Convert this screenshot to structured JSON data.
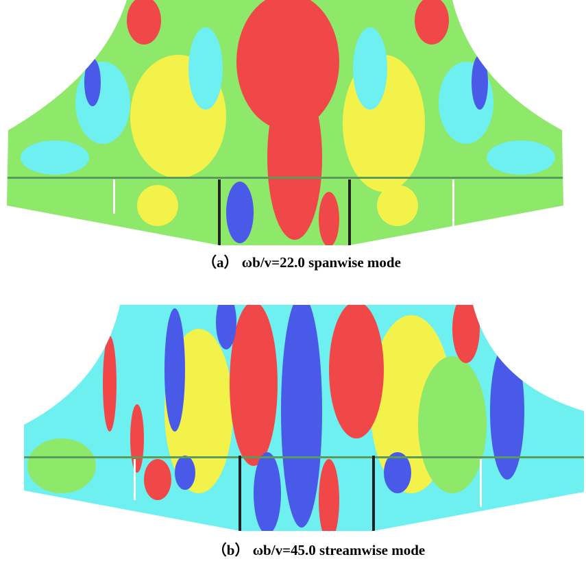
{
  "figures": [
    {
      "caption": "（a） ωb/v=22.0 spanwise mode"
    },
    {
      "caption": "（b） ωb/v=45.0 streamwise mode"
    }
  ]
}
